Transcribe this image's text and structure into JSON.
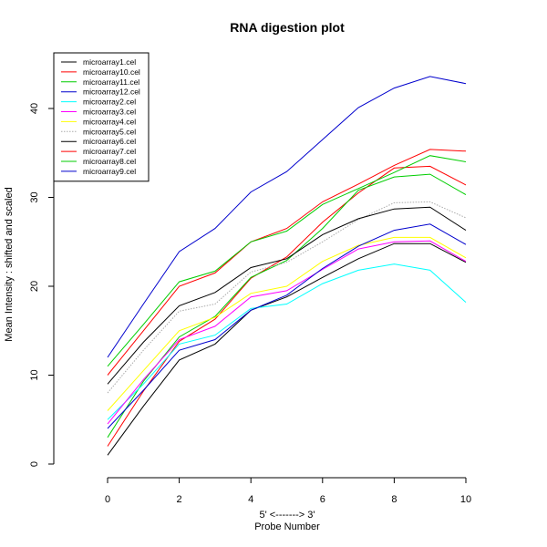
{
  "chart_data": {
    "type": "line",
    "title": "RNA digestion plot",
    "xlabel_top": "5' <-------> 3'",
    "xlabel": "Probe Number",
    "ylabel": "Mean Intensity : shifted and scaled",
    "xlim": [
      0,
      10
    ],
    "ylim": [
      0,
      45
    ],
    "xticks": [
      0,
      2,
      4,
      6,
      8,
      10
    ],
    "yticks": [
      0,
      10,
      20,
      30,
      40
    ],
    "grid": false,
    "legend_position": "top-left",
    "x": [
      0,
      1,
      2,
      3,
      4,
      5,
      6,
      7,
      8,
      9,
      10
    ],
    "series": [
      {
        "name": "microarray1.cel",
        "color": "#000000",
        "dashed": false,
        "values": [
          1.0,
          6.5,
          11.7,
          13.5,
          17.3,
          18.8,
          21.0,
          23.1,
          24.8,
          24.8,
          22.7
        ]
      },
      {
        "name": "microarray10.cel",
        "color": "#ff0000",
        "dashed": false,
        "values": [
          2.0,
          8.2,
          13.8,
          16.3,
          20.9,
          23.3,
          27.2,
          30.5,
          33.3,
          33.5,
          31.4
        ]
      },
      {
        "name": "microarray11.cel",
        "color": "#00cd00",
        "dashed": false,
        "values": [
          3.0,
          9.3,
          14.3,
          16.6,
          21.0,
          22.9,
          26.5,
          30.8,
          32.3,
          32.6,
          30.3
        ]
      },
      {
        "name": "microarray12.cel",
        "color": "#0000cd",
        "dashed": false,
        "values": [
          12.0,
          18.0,
          23.9,
          26.5,
          30.6,
          32.9,
          36.5,
          40.1,
          42.3,
          43.6,
          42.8
        ]
      },
      {
        "name": "microarray2.cel",
        "color": "#00ffff",
        "dashed": false,
        "values": [
          5.0,
          9.0,
          13.5,
          14.5,
          17.5,
          18.0,
          20.3,
          21.8,
          22.5,
          21.8,
          18.2
        ]
      },
      {
        "name": "microarray3.cel",
        "color": "#ff00ff",
        "dashed": false,
        "values": [
          4.5,
          9.5,
          14.0,
          15.5,
          18.8,
          19.5,
          21.9,
          24.2,
          25.0,
          25.1,
          22.8
        ]
      },
      {
        "name": "microarray4.cel",
        "color": "#ffff00",
        "dashed": false,
        "values": [
          6.0,
          10.5,
          15.0,
          16.5,
          19.2,
          20.0,
          22.8,
          24.6,
          25.5,
          25.5,
          23.2
        ]
      },
      {
        "name": "microarray5.cel",
        "color": "#aaaaaa",
        "dashed": true,
        "values": [
          8.0,
          12.8,
          17.2,
          18.0,
          21.6,
          22.7,
          25.0,
          27.5,
          29.4,
          29.5,
          27.7
        ]
      },
      {
        "name": "microarray6.cel",
        "color": "#000000",
        "dashed": false,
        "values": [
          9.0,
          13.7,
          17.8,
          19.3,
          22.1,
          23.1,
          25.8,
          27.6,
          28.7,
          28.9,
          26.3
        ]
      },
      {
        "name": "microarray7.cel",
        "color": "#ff0000",
        "dashed": false,
        "values": [
          10.0,
          15.0,
          20.0,
          21.5,
          25.0,
          26.5,
          29.5,
          31.5,
          33.6,
          35.4,
          35.2
        ]
      },
      {
        "name": "microarray8.cel",
        "color": "#00cd00",
        "dashed": false,
        "values": [
          11.0,
          15.7,
          20.5,
          21.7,
          25.0,
          26.2,
          29.2,
          31.0,
          32.8,
          34.7,
          34.0
        ]
      },
      {
        "name": "microarray9.cel",
        "color": "#0000cd",
        "dashed": false,
        "values": [
          4.0,
          8.3,
          12.8,
          14.0,
          17.3,
          19.0,
          22.0,
          24.5,
          26.3,
          27.0,
          24.7
        ]
      }
    ]
  }
}
